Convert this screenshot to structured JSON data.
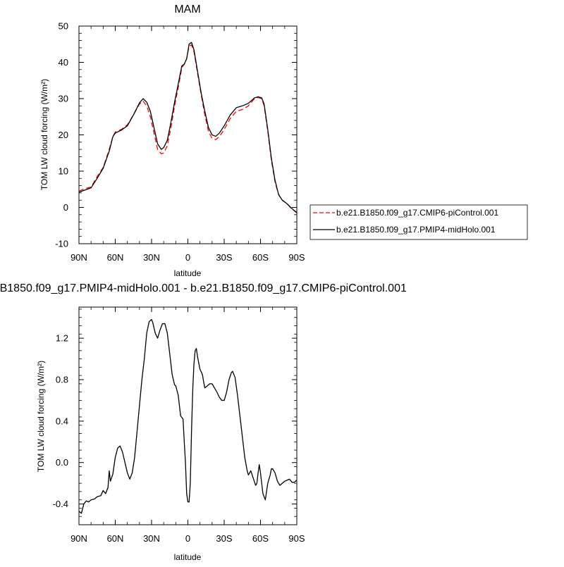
{
  "chart_data": [
    {
      "type": "line",
      "title": "MAM",
      "xlabel": "latitude",
      "ylabel": "TOM LW cloud forcing (W/m²)",
      "xlim": [
        90,
        -90
      ],
      "ylim": [
        -10,
        50
      ],
      "x_tick_values": [
        90,
        60,
        30,
        0,
        -30,
        -60,
        -90
      ],
      "x_tick_labels": [
        "90N",
        "60N",
        "30N",
        "0",
        "30S",
        "60S",
        "90S"
      ],
      "y_ticks": [
        -10,
        0,
        10,
        20,
        30,
        40,
        50
      ],
      "y_tick_labels": [
        "-10",
        "0",
        "10",
        "20",
        "30",
        "40",
        "50"
      ],
      "legend_position": "right, outside the plot",
      "series": [
        {
          "name": "b.e21.B1850.f09_g17.CMIP6-piControl.001",
          "color": "#ff0000",
          "dash": "dashed",
          "points": [
            [
              90,
              4.5
            ],
            [
              85,
              5.2
            ],
            [
              80,
              5.6
            ],
            [
              75,
              8.5
            ],
            [
              70,
              11
            ],
            [
              65,
              16
            ],
            [
              62,
              19.5
            ],
            [
              60,
              20.8
            ],
            [
              55,
              21.5
            ],
            [
              50,
              22.8
            ],
            [
              45,
              25.5
            ],
            [
              40,
              28.5
            ],
            [
              37,
              29.3
            ],
            [
              34,
              28
            ],
            [
              31,
              25
            ],
            [
              28,
              20.5
            ],
            [
              25,
              16
            ],
            [
              22,
              14.8
            ],
            [
              20,
              15
            ],
            [
              17,
              17
            ],
            [
              14,
              22
            ],
            [
              11,
              28
            ],
            [
              8,
              33
            ],
            [
              5,
              38.5
            ],
            [
              3,
              39.5
            ],
            [
              1,
              41
            ],
            [
              -1,
              44.5
            ],
            [
              -3,
              44.8
            ],
            [
              -5,
              43
            ],
            [
              -8,
              37
            ],
            [
              -11,
              31
            ],
            [
              -14,
              25.5
            ],
            [
              -17,
              21
            ],
            [
              -20,
              19
            ],
            [
              -23,
              18.7
            ],
            [
              -26,
              19.5
            ],
            [
              -30,
              21.5
            ],
            [
              -35,
              24.5
            ],
            [
              -40,
              26.5
            ],
            [
              -45,
              27
            ],
            [
              -50,
              28
            ],
            [
              -55,
              30
            ],
            [
              -58,
              30.3
            ],
            [
              -61,
              30
            ],
            [
              -63,
              28
            ],
            [
              -66,
              21
            ],
            [
              -69,
              13
            ],
            [
              -72,
              7
            ],
            [
              -75,
              3.5
            ],
            [
              -78,
              2
            ],
            [
              -82,
              1
            ],
            [
              -86,
              -0.5
            ],
            [
              -90,
              -1.3
            ]
          ]
        },
        {
          "name": "b.e21.B1850.f09_g17.PMIP4-midHolo.001",
          "color": "#000000",
          "dash": "solid",
          "points": [
            [
              90,
              4.2
            ],
            [
              85,
              4.8
            ],
            [
              80,
              5.4
            ],
            [
              75,
              8
            ],
            [
              70,
              10.8
            ],
            [
              65,
              15.5
            ],
            [
              62,
              19.5
            ],
            [
              60,
              20.5
            ],
            [
              55,
              21.3
            ],
            [
              50,
              22.5
            ],
            [
              45,
              25.5
            ],
            [
              40,
              28.8
            ],
            [
              37,
              30
            ],
            [
              34,
              29
            ],
            [
              31,
              26.5
            ],
            [
              28,
              22
            ],
            [
              25,
              17.5
            ],
            [
              22,
              16
            ],
            [
              20,
              16.5
            ],
            [
              17,
              18.5
            ],
            [
              14,
              23.5
            ],
            [
              11,
              29
            ],
            [
              8,
              34
            ],
            [
              5,
              39
            ],
            [
              3,
              39.5
            ],
            [
              1,
              41
            ],
            [
              -1,
              45
            ],
            [
              -3,
              45.5
            ],
            [
              -5,
              43.5
            ],
            [
              -8,
              37.5
            ],
            [
              -11,
              31.5
            ],
            [
              -14,
              26.5
            ],
            [
              -17,
              22
            ],
            [
              -20,
              20
            ],
            [
              -23,
              19.6
            ],
            [
              -26,
              20.5
            ],
            [
              -30,
              22.5
            ],
            [
              -35,
              25.5
            ],
            [
              -40,
              27.5
            ],
            [
              -45,
              28
            ],
            [
              -50,
              28.7
            ],
            [
              -55,
              30.2
            ],
            [
              -58,
              30.5
            ],
            [
              -61,
              30.2
            ],
            [
              -63,
              28.5
            ],
            [
              -66,
              21.5
            ],
            [
              -69,
              13.5
            ],
            [
              -72,
              7.5
            ],
            [
              -75,
              3.5
            ],
            [
              -78,
              2
            ],
            [
              -82,
              1
            ],
            [
              -86,
              -0.3
            ],
            [
              -90,
              -1.5
            ]
          ]
        }
      ]
    },
    {
      "type": "line",
      "title": "b.e21.B1850.f09_g17.PMIP4-midHolo.001 - b.e21.B1850.f09_g17.CMIP6-piControl.001",
      "xlabel": "latitude",
      "ylabel": "TOM LW cloud forcing (W/m²)",
      "xlim": [
        90,
        -90
      ],
      "ylim": [
        -0.6,
        1.5
      ],
      "x_tick_values": [
        90,
        60,
        30,
        0,
        -30,
        -60,
        -90
      ],
      "x_tick_labels": [
        "90N",
        "60N",
        "30N",
        "0",
        "30S",
        "60S",
        "90S"
      ],
      "y_ticks": [
        -0.4,
        0.0,
        0.4,
        0.8,
        1.2
      ],
      "y_tick_labels": [
        "-0.4",
        "0.0",
        "0.4",
        "0.8",
        "1.2"
      ],
      "series": [
        {
          "color": "#000000",
          "dash": "solid",
          "points": [
            [
              90,
              -0.47
            ],
            [
              88,
              -0.49
            ],
            [
              86,
              -0.4
            ],
            [
              84,
              -0.37
            ],
            [
              82,
              -0.38
            ],
            [
              80,
              -0.36
            ],
            [
              77,
              -0.35
            ],
            [
              75,
              -0.33
            ],
            [
              72,
              -0.32
            ],
            [
              70,
              -0.27
            ],
            [
              68,
              -0.3
            ],
            [
              66,
              -0.24
            ],
            [
              65,
              -0.08
            ],
            [
              64,
              -0.18
            ],
            [
              62,
              -0.11
            ],
            [
              60,
              0.05
            ],
            [
              58,
              0.14
            ],
            [
              56,
              0.16
            ],
            [
              54,
              0.1
            ],
            [
              52,
              0.0
            ],
            [
              50,
              -0.1
            ],
            [
              48,
              -0.16
            ],
            [
              46,
              -0.1
            ],
            [
              44,
              0.05
            ],
            [
              42,
              0.3
            ],
            [
              40,
              0.55
            ],
            [
              38,
              0.8
            ],
            [
              36,
              1.0
            ],
            [
              34,
              1.25
            ],
            [
              32,
              1.36
            ],
            [
              30,
              1.38
            ],
            [
              29,
              1.35
            ],
            [
              27,
              1.25
            ],
            [
              25,
              1.2
            ],
            [
              23,
              1.28
            ],
            [
              21,
              1.34
            ],
            [
              19,
              1.34
            ],
            [
              17,
              1.25
            ],
            [
              15,
              1.05
            ],
            [
              13,
              0.85
            ],
            [
              11,
              0.75
            ],
            [
              10,
              0.74
            ],
            [
              8,
              0.65
            ],
            [
              6,
              0.45
            ],
            [
              4,
              0.42
            ],
            [
              3,
              0.2
            ],
            [
              2,
              0.0
            ],
            [
              1,
              -0.3
            ],
            [
              0,
              -0.38
            ],
            [
              -1,
              -0.38
            ],
            [
              -2,
              -0.2
            ],
            [
              -3,
              0.3
            ],
            [
              -4,
              0.7
            ],
            [
              -5,
              0.95
            ],
            [
              -6,
              1.08
            ],
            [
              -7,
              1.1
            ],
            [
              -8,
              1.02
            ],
            [
              -10,
              0.9
            ],
            [
              -12,
              0.85
            ],
            [
              -13,
              0.78
            ],
            [
              -14,
              0.72
            ],
            [
              -16,
              0.74
            ],
            [
              -18,
              0.76
            ],
            [
              -20,
              0.76
            ],
            [
              -22,
              0.72
            ],
            [
              -24,
              0.68
            ],
            [
              -26,
              0.63
            ],
            [
              -28,
              0.6
            ],
            [
              -30,
              0.6
            ],
            [
              -32,
              0.68
            ],
            [
              -34,
              0.8
            ],
            [
              -36,
              0.87
            ],
            [
              -37,
              0.88
            ],
            [
              -39,
              0.82
            ],
            [
              -41,
              0.65
            ],
            [
              -43,
              0.45
            ],
            [
              -45,
              0.25
            ],
            [
              -47,
              0.05
            ],
            [
              -49,
              -0.08
            ],
            [
              -50,
              -0.12
            ],
            [
              -52,
              -0.08
            ],
            [
              -54,
              -0.15
            ],
            [
              -56,
              -0.22
            ],
            [
              -57,
              -0.2
            ],
            [
              -58,
              -0.1
            ],
            [
              -59,
              -0.02
            ],
            [
              -60,
              -0.1
            ],
            [
              -61,
              -0.2
            ],
            [
              -62,
              -0.3
            ],
            [
              -63,
              -0.33
            ],
            [
              -64,
              -0.36
            ],
            [
              -65,
              -0.28
            ],
            [
              -66,
              -0.2
            ],
            [
              -68,
              -0.12
            ],
            [
              -69,
              -0.06
            ],
            [
              -70,
              -0.06
            ],
            [
              -72,
              -0.1
            ],
            [
              -74,
              -0.18
            ],
            [
              -76,
              -0.22
            ],
            [
              -77,
              -0.21
            ],
            [
              -78,
              -0.2
            ],
            [
              -80,
              -0.18
            ],
            [
              -82,
              -0.17
            ],
            [
              -84,
              -0.16
            ],
            [
              -86,
              -0.19
            ],
            [
              -88,
              -0.19
            ],
            [
              -90,
              -0.17
            ]
          ]
        }
      ]
    }
  ]
}
